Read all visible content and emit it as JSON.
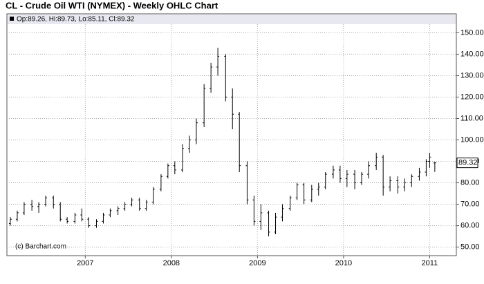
{
  "chart_data": {
    "type": "ohlc",
    "title": "CL - Crude Oil WTI (NYMEX) - Weekly OHLC Chart",
    "legend_text": "Op:89.26, Hi:89.73, Lo:85.11, Cl:89.32",
    "watermark": "(c) Barchart.com",
    "last_price": 89.32,
    "color": "#000000",
    "grid": true,
    "xlim": [
      2006.09,
      2011.31
    ],
    "xticks": [
      2007,
      2008,
      2009,
      2010,
      2011
    ],
    "ylim": [
      46,
      154
    ],
    "yticks": [
      {
        "value": 50,
        "label": "50.00"
      },
      {
        "value": 60,
        "label": "60.00"
      },
      {
        "value": 70,
        "label": "70.00"
      },
      {
        "value": 80,
        "label": "80.00"
      },
      {
        "value": 90,
        "label": "90.00"
      },
      {
        "value": 100,
        "label": "100.00"
      },
      {
        "value": 110,
        "label": "110.00"
      },
      {
        "value": 120,
        "label": "120.00"
      },
      {
        "value": 130,
        "label": "130.00"
      },
      {
        "value": 140,
        "label": "140.00"
      },
      {
        "value": 150,
        "label": "150.00"
      }
    ],
    "x": [
      2006.13,
      2006.21,
      2006.29,
      2006.38,
      2006.46,
      2006.54,
      2006.63,
      2006.71,
      2006.79,
      2006.88,
      2006.96,
      2007.04,
      2007.13,
      2007.21,
      2007.29,
      2007.38,
      2007.46,
      2007.54,
      2007.63,
      2007.71,
      2007.79,
      2007.88,
      2007.96,
      2008.04,
      2008.13,
      2008.21,
      2008.29,
      2008.38,
      2008.46,
      2008.54,
      2008.63,
      2008.71,
      2008.79,
      2008.88,
      2008.96,
      2009.04,
      2009.13,
      2009.21,
      2009.29,
      2009.38,
      2009.46,
      2009.54,
      2009.63,
      2009.71,
      2009.79,
      2009.88,
      2009.96,
      2010.04,
      2010.13,
      2010.21,
      2010.29,
      2010.38,
      2010.46,
      2010.54,
      2010.63,
      2010.71,
      2010.79,
      2010.88,
      2010.96,
      2011.0,
      2011.06
    ],
    "open": [
      61,
      63,
      66,
      70,
      69,
      70,
      73,
      70,
      63,
      62,
      65,
      63,
      60,
      62,
      65,
      67,
      68,
      70,
      72,
      68,
      71,
      77,
      83,
      88,
      86,
      96,
      100,
      108,
      124,
      134,
      139,
      120,
      112,
      88,
      72,
      62,
      66,
      57,
      64,
      68,
      73,
      79,
      72,
      77,
      78,
      84,
      86,
      82,
      84,
      80,
      84,
      88,
      92,
      78,
      81,
      78,
      80,
      83,
      85,
      90,
      89.26
    ],
    "high": [
      64,
      67,
      71,
      72,
      71,
      74,
      74,
      71,
      64,
      66,
      68,
      64,
      63,
      66,
      68,
      69,
      71,
      73,
      73,
      72,
      78,
      84,
      89,
      90,
      98,
      102,
      110,
      126,
      136,
      143,
      140,
      124,
      113,
      90,
      74,
      70,
      67,
      66,
      70,
      74,
      80,
      80,
      79,
      80,
      85,
      88,
      88,
      86,
      86,
      85,
      90,
      94,
      93,
      83,
      83,
      82,
      84,
      87,
      91,
      94,
      89.73
    ],
    "low": [
      60,
      62,
      65,
      67,
      66,
      69,
      68,
      62,
      61,
      61,
      62,
      59,
      59,
      61,
      64,
      65,
      67,
      69,
      67,
      67,
      70,
      76,
      82,
      84,
      85,
      94,
      98,
      106,
      122,
      130,
      118,
      105,
      85,
      70,
      60,
      58,
      55,
      56,
      62,
      67,
      72,
      70,
      71,
      74,
      77,
      82,
      80,
      78,
      77,
      79,
      82,
      86,
      74,
      76,
      75,
      76,
      78,
      81,
      83,
      87,
      85.11
    ],
    "close": [
      63,
      66,
      70,
      69,
      70,
      73,
      70,
      63,
      62,
      65,
      63,
      60,
      62,
      65,
      67,
      68,
      70,
      72,
      68,
      71,
      77,
      83,
      88,
      86,
      96,
      100,
      108,
      124,
      134,
      139,
      120,
      112,
      88,
      72,
      62,
      66,
      57,
      64,
      68,
      73,
      79,
      72,
      77,
      78,
      84,
      86,
      82,
      84,
      80,
      84,
      88,
      92,
      78,
      81,
      78,
      80,
      83,
      85,
      90,
      92,
      89.32
    ]
  }
}
